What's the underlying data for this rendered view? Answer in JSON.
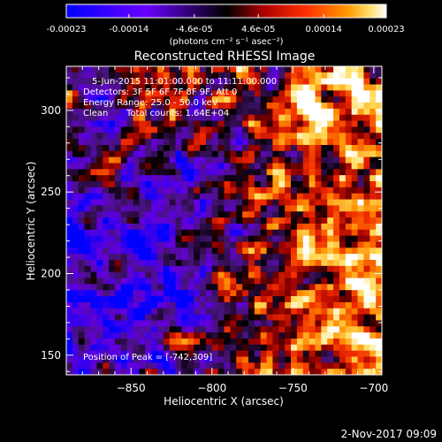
{
  "chart_data": {
    "type": "heatmap",
    "title": "Reconstructed RHESSI Image",
    "xlabel": "Heliocentric X (arcsec)",
    "ylabel": "Heliocentric Y (arcsec)",
    "xlim": [
      -890,
      -695
    ],
    "ylim": [
      138,
      327
    ],
    "xticks": [
      -850,
      -800,
      -750,
      -700
    ],
    "yticks": [
      150,
      200,
      250,
      300
    ],
    "grid": false,
    "colorbar": {
      "min": -0.00023,
      "max": 0.00023,
      "ticks": [
        -0.00023,
        -0.00014,
        -4.6e-05,
        4.6e-05,
        0.00014,
        0.00023
      ],
      "tick_labels": [
        "-0.00023",
        "-0.00014",
        "-4.6e-05",
        "4.6e-05",
        "0.00014",
        "0.00023"
      ],
      "unit_label": "(photons cm⁻² s⁻¹ asec⁻²)",
      "colors": [
        "#0000ff",
        "#7000ff",
        "#3a1a5a",
        "#000000",
        "#a00000",
        "#ff3000",
        "#ff9000",
        "#ffe060",
        "#ffffff"
      ]
    },
    "annotations": {
      "time_range": "5-Jun-2015 11:01:00.000 to 11:11:00.000",
      "detectors": "Detectors: 3F 5F 6F 7F 8F 9F, Att 0",
      "energy_range": "Energy Range: 25.0 - 50.0 keV",
      "clean": "Clean",
      "total_counts": "Total counts: 1.64E+04",
      "peak": "Position of Peak = [-742,309]"
    },
    "peak": {
      "x": -742,
      "y": 309
    },
    "footer_date": "2-Nov-2017 09:09"
  }
}
